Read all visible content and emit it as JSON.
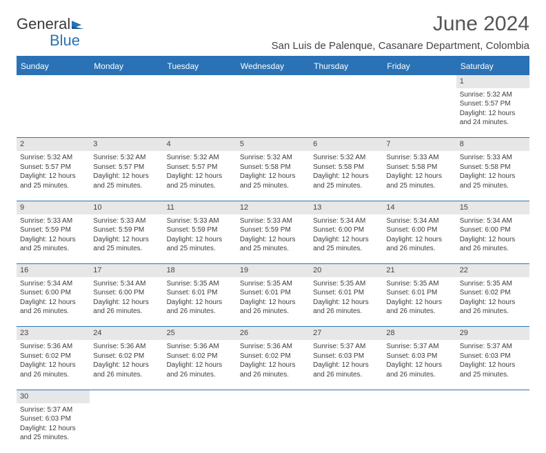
{
  "brand": {
    "part1": "General",
    "part2": "Blue"
  },
  "title": "June 2024",
  "location": "San Luis de Palenque, Casanare Department, Colombia",
  "colors": {
    "accent": "#2a72b5",
    "header_bg": "#2a72b5",
    "daynum_bg": "#e7e7e7"
  },
  "day_headers": [
    "Sunday",
    "Monday",
    "Tuesday",
    "Wednesday",
    "Thursday",
    "Friday",
    "Saturday"
  ],
  "weeks": [
    {
      "nums": [
        "",
        "",
        "",
        "",
        "",
        "",
        "1"
      ],
      "cells": [
        null,
        null,
        null,
        null,
        null,
        null,
        {
          "sunrise": "Sunrise: 5:32 AM",
          "sunset": "Sunset: 5:57 PM",
          "day1": "Daylight: 12 hours",
          "day2": "and 24 minutes."
        }
      ]
    },
    {
      "nums": [
        "2",
        "3",
        "4",
        "5",
        "6",
        "7",
        "8"
      ],
      "cells": [
        {
          "sunrise": "Sunrise: 5:32 AM",
          "sunset": "Sunset: 5:57 PM",
          "day1": "Daylight: 12 hours",
          "day2": "and 25 minutes."
        },
        {
          "sunrise": "Sunrise: 5:32 AM",
          "sunset": "Sunset: 5:57 PM",
          "day1": "Daylight: 12 hours",
          "day2": "and 25 minutes."
        },
        {
          "sunrise": "Sunrise: 5:32 AM",
          "sunset": "Sunset: 5:57 PM",
          "day1": "Daylight: 12 hours",
          "day2": "and 25 minutes."
        },
        {
          "sunrise": "Sunrise: 5:32 AM",
          "sunset": "Sunset: 5:58 PM",
          "day1": "Daylight: 12 hours",
          "day2": "and 25 minutes."
        },
        {
          "sunrise": "Sunrise: 5:32 AM",
          "sunset": "Sunset: 5:58 PM",
          "day1": "Daylight: 12 hours",
          "day2": "and 25 minutes."
        },
        {
          "sunrise": "Sunrise: 5:33 AM",
          "sunset": "Sunset: 5:58 PM",
          "day1": "Daylight: 12 hours",
          "day2": "and 25 minutes."
        },
        {
          "sunrise": "Sunrise: 5:33 AM",
          "sunset": "Sunset: 5:58 PM",
          "day1": "Daylight: 12 hours",
          "day2": "and 25 minutes."
        }
      ]
    },
    {
      "nums": [
        "9",
        "10",
        "11",
        "12",
        "13",
        "14",
        "15"
      ],
      "cells": [
        {
          "sunrise": "Sunrise: 5:33 AM",
          "sunset": "Sunset: 5:59 PM",
          "day1": "Daylight: 12 hours",
          "day2": "and 25 minutes."
        },
        {
          "sunrise": "Sunrise: 5:33 AM",
          "sunset": "Sunset: 5:59 PM",
          "day1": "Daylight: 12 hours",
          "day2": "and 25 minutes."
        },
        {
          "sunrise": "Sunrise: 5:33 AM",
          "sunset": "Sunset: 5:59 PM",
          "day1": "Daylight: 12 hours",
          "day2": "and 25 minutes."
        },
        {
          "sunrise": "Sunrise: 5:33 AM",
          "sunset": "Sunset: 5:59 PM",
          "day1": "Daylight: 12 hours",
          "day2": "and 25 minutes."
        },
        {
          "sunrise": "Sunrise: 5:34 AM",
          "sunset": "Sunset: 6:00 PM",
          "day1": "Daylight: 12 hours",
          "day2": "and 25 minutes."
        },
        {
          "sunrise": "Sunrise: 5:34 AM",
          "sunset": "Sunset: 6:00 PM",
          "day1": "Daylight: 12 hours",
          "day2": "and 26 minutes."
        },
        {
          "sunrise": "Sunrise: 5:34 AM",
          "sunset": "Sunset: 6:00 PM",
          "day1": "Daylight: 12 hours",
          "day2": "and 26 minutes."
        }
      ]
    },
    {
      "nums": [
        "16",
        "17",
        "18",
        "19",
        "20",
        "21",
        "22"
      ],
      "cells": [
        {
          "sunrise": "Sunrise: 5:34 AM",
          "sunset": "Sunset: 6:00 PM",
          "day1": "Daylight: 12 hours",
          "day2": "and 26 minutes."
        },
        {
          "sunrise": "Sunrise: 5:34 AM",
          "sunset": "Sunset: 6:00 PM",
          "day1": "Daylight: 12 hours",
          "day2": "and 26 minutes."
        },
        {
          "sunrise": "Sunrise: 5:35 AM",
          "sunset": "Sunset: 6:01 PM",
          "day1": "Daylight: 12 hours",
          "day2": "and 26 minutes."
        },
        {
          "sunrise": "Sunrise: 5:35 AM",
          "sunset": "Sunset: 6:01 PM",
          "day1": "Daylight: 12 hours",
          "day2": "and 26 minutes."
        },
        {
          "sunrise": "Sunrise: 5:35 AM",
          "sunset": "Sunset: 6:01 PM",
          "day1": "Daylight: 12 hours",
          "day2": "and 26 minutes."
        },
        {
          "sunrise": "Sunrise: 5:35 AM",
          "sunset": "Sunset: 6:01 PM",
          "day1": "Daylight: 12 hours",
          "day2": "and 26 minutes."
        },
        {
          "sunrise": "Sunrise: 5:35 AM",
          "sunset": "Sunset: 6:02 PM",
          "day1": "Daylight: 12 hours",
          "day2": "and 26 minutes."
        }
      ]
    },
    {
      "nums": [
        "23",
        "24",
        "25",
        "26",
        "27",
        "28",
        "29"
      ],
      "cells": [
        {
          "sunrise": "Sunrise: 5:36 AM",
          "sunset": "Sunset: 6:02 PM",
          "day1": "Daylight: 12 hours",
          "day2": "and 26 minutes."
        },
        {
          "sunrise": "Sunrise: 5:36 AM",
          "sunset": "Sunset: 6:02 PM",
          "day1": "Daylight: 12 hours",
          "day2": "and 26 minutes."
        },
        {
          "sunrise": "Sunrise: 5:36 AM",
          "sunset": "Sunset: 6:02 PM",
          "day1": "Daylight: 12 hours",
          "day2": "and 26 minutes."
        },
        {
          "sunrise": "Sunrise: 5:36 AM",
          "sunset": "Sunset: 6:02 PM",
          "day1": "Daylight: 12 hours",
          "day2": "and 26 minutes."
        },
        {
          "sunrise": "Sunrise: 5:37 AM",
          "sunset": "Sunset: 6:03 PM",
          "day1": "Daylight: 12 hours",
          "day2": "and 26 minutes."
        },
        {
          "sunrise": "Sunrise: 5:37 AM",
          "sunset": "Sunset: 6:03 PM",
          "day1": "Daylight: 12 hours",
          "day2": "and 26 minutes."
        },
        {
          "sunrise": "Sunrise: 5:37 AM",
          "sunset": "Sunset: 6:03 PM",
          "day1": "Daylight: 12 hours",
          "day2": "and 25 minutes."
        }
      ]
    },
    {
      "nums": [
        "30",
        "",
        "",
        "",
        "",
        "",
        ""
      ],
      "cells": [
        {
          "sunrise": "Sunrise: 5:37 AM",
          "sunset": "Sunset: 6:03 PM",
          "day1": "Daylight: 12 hours",
          "day2": "and 25 minutes."
        },
        null,
        null,
        null,
        null,
        null,
        null
      ]
    }
  ]
}
